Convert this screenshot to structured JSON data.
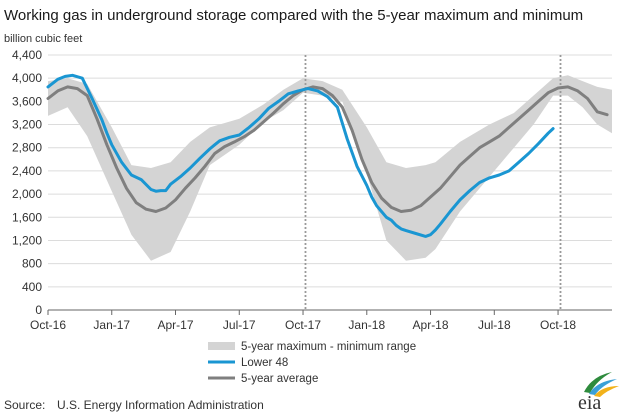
{
  "chart_data": {
    "type": "line",
    "title": "Working gas in underground  storage compared with the 5-year maximum and minimum",
    "ylabel": "billion cubic feet",
    "ylim": [
      0,
      4400
    ],
    "y_ticks": [
      "0",
      "400",
      "800",
      "1,200",
      "1,600",
      "2,000",
      "2,400",
      "2,800",
      "3,200",
      "3,600",
      "4,000",
      "4,400"
    ],
    "x_ticks": [
      "Oct-16",
      "Jan-17",
      "Apr-17",
      "Jul-17",
      "Oct-17",
      "Jan-18",
      "Apr-18",
      "Jul-18",
      "Oct-18"
    ],
    "x_range_weeks": [
      0,
      115
    ],
    "vertical_markers_weeks": [
      52.5,
      104.5
    ],
    "legend": {
      "placement": "bottom-center",
      "entries": [
        "5-year maximum - minimum range",
        "Lower 48",
        "5-year average"
      ]
    },
    "colors": {
      "lower48": "#1a96d2",
      "average": "#7f7f7f",
      "range": "#d4d4d4",
      "marker": "#9a9a9a"
    },
    "series": [
      {
        "name": "5-year maximum - minimum range",
        "kind": "band",
        "x": [
          0,
          4,
          8,
          13,
          17,
          21,
          25,
          29,
          33,
          39,
          44,
          48,
          52,
          56,
          60,
          65,
          69,
          73,
          77,
          79,
          84,
          90,
          95,
          99,
          103,
          106,
          109,
          112,
          115
        ],
        "upper": [
          3950,
          4000,
          3900,
          3150,
          2500,
          2450,
          2550,
          2900,
          3150,
          3300,
          3550,
          3800,
          4000,
          3950,
          3800,
          3150,
          2550,
          2450,
          2500,
          2550,
          2900,
          3200,
          3400,
          3700,
          4000,
          4050,
          3950,
          3850,
          3800
        ],
        "lower": [
          3350,
          3500,
          3000,
          2050,
          1300,
          850,
          1000,
          1700,
          2500,
          2850,
          3250,
          3450,
          3750,
          3700,
          3600,
          2350,
          1200,
          850,
          900,
          1050,
          1700,
          2300,
          2800,
          3200,
          3700,
          3700,
          3500,
          3200,
          3050
        ]
      },
      {
        "name": "Lower 48",
        "x": [
          0,
          2,
          3.5,
          5,
          7,
          9,
          11,
          12,
          13,
          15,
          17,
          19,
          21,
          22,
          23,
          24,
          25,
          27,
          29,
          31,
          33,
          34,
          35,
          37,
          39,
          41,
          43,
          45,
          47,
          49,
          51,
          53,
          55,
          57,
          59,
          61,
          63,
          65,
          66,
          67,
          68,
          69,
          70,
          71,
          72,
          73,
          75,
          77,
          78,
          79,
          80,
          82,
          84,
          86,
          88,
          90,
          92,
          94,
          96,
          98,
          100,
          102,
          103
        ],
        "values": [
          3850,
          3980,
          4030,
          4050,
          4000,
          3650,
          3280,
          3050,
          2850,
          2550,
          2330,
          2250,
          2080,
          2050,
          2060,
          2060,
          2170,
          2300,
          2450,
          2620,
          2780,
          2850,
          2920,
          2980,
          3020,
          3150,
          3300,
          3480,
          3600,
          3730,
          3780,
          3820,
          3780,
          3680,
          3500,
          2950,
          2480,
          2150,
          1950,
          1800,
          1700,
          1600,
          1550,
          1460,
          1400,
          1370,
          1320,
          1270,
          1300,
          1380,
          1480,
          1700,
          1900,
          2060,
          2200,
          2280,
          2330,
          2400,
          2550,
          2700,
          2870,
          3050,
          3130
        ]
      },
      {
        "name": "5-year average",
        "x": [
          0,
          2,
          4,
          6,
          8,
          10,
          12,
          14,
          16,
          18,
          20,
          22,
          24,
          26,
          28,
          30,
          32,
          34,
          36,
          38,
          40,
          42,
          44,
          46,
          48,
          50,
          52,
          54,
          56,
          58,
          60,
          62,
          64,
          66,
          68,
          70,
          72,
          74,
          76,
          78,
          80,
          82,
          84,
          86,
          88,
          90,
          92,
          94,
          96,
          98,
          100,
          102,
          104,
          106,
          108,
          110,
          112,
          114
        ],
        "values": [
          3650,
          3780,
          3850,
          3820,
          3700,
          3300,
          2850,
          2450,
          2100,
          1850,
          1740,
          1700,
          1760,
          1900,
          2100,
          2280,
          2480,
          2700,
          2820,
          2900,
          2990,
          3100,
          3250,
          3400,
          3560,
          3700,
          3800,
          3850,
          3820,
          3700,
          3500,
          3100,
          2600,
          2200,
          1930,
          1770,
          1700,
          1720,
          1800,
          1950,
          2100,
          2300,
          2500,
          2650,
          2800,
          2900,
          3000,
          3150,
          3300,
          3450,
          3600,
          3750,
          3830,
          3850,
          3780,
          3650,
          3420,
          3370
        ]
      }
    ]
  },
  "source": {
    "label": "Source:",
    "text": "U.S. Energy Information Administration"
  },
  "logo": {
    "text": "eia"
  }
}
